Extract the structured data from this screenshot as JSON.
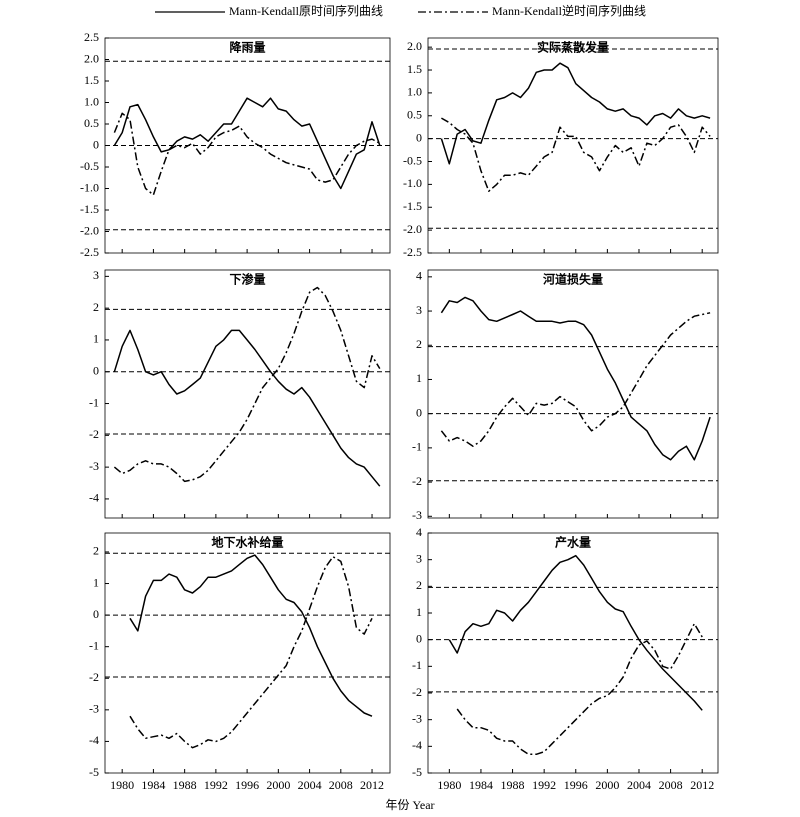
{
  "xlabel": "年份 Year",
  "chart_data": [
    {
      "type": "line",
      "title": "降雨量",
      "x": [
        1979,
        1980,
        1981,
        1982,
        1983,
        1984,
        1985,
        1986,
        1987,
        1988,
        1989,
        1990,
        1991,
        1992,
        1993,
        1994,
        1995,
        1996,
        1997,
        1998,
        1999,
        2000,
        2001,
        2002,
        2003,
        2004,
        2005,
        2006,
        2007,
        2008,
        2009,
        2010,
        2011,
        2012,
        2013
      ],
      "xlim": [
        1977.8,
        2014.3
      ],
      "xticks": [
        1980,
        1984,
        1988,
        1992,
        1996,
        2000,
        2004,
        2008,
        2012
      ],
      "ylim": [
        -2.5,
        2.5
      ],
      "yticks": [
        2.5,
        {
          "value": 2,
          "label": "2.0"
        },
        1.5,
        {
          "value": 1,
          "label": "1.0"
        },
        0.5,
        0,
        -0.5,
        {
          "value": -1,
          "label": "-1.0"
        },
        -1.5,
        {
          "value": -2,
          "label": "-2.0"
        },
        -2.5
      ],
      "reference_lines": [
        1.96,
        0,
        -1.96
      ],
      "series": [
        {
          "name": "Mann-Kendall原时间序列曲线",
          "color": "#000000",
          "style": "solid",
          "values": [
            0,
            0.3,
            0.9,
            0.95,
            0.6,
            0.2,
            -0.15,
            -0.1,
            0.1,
            0.2,
            0.15,
            0.25,
            0.1,
            0.3,
            0.5,
            0.5,
            0.8,
            1.1,
            1.0,
            0.9,
            1.1,
            0.85,
            0.8,
            0.6,
            0.45,
            0.5,
            0.1,
            -0.3,
            -0.7,
            -1.0,
            -0.6,
            -0.2,
            -0.1,
            0.55,
            0.0
          ]
        },
        {
          "name": "Mann-Kendall逆时间序列曲线",
          "color": "#000000",
          "style": "dashdot",
          "values": [
            0.3,
            0.75,
            0.6,
            -0.5,
            -1.0,
            -1.15,
            -0.6,
            -0.1,
            0,
            -0.05,
            0.05,
            -0.2,
            -0.05,
            0.2,
            0.3,
            0.35,
            0.45,
            0.2,
            0.05,
            -0.05,
            -0.2,
            -0.3,
            -0.4,
            -0.45,
            -0.5,
            -0.55,
            -0.8,
            -0.85,
            -0.8,
            -0.5,
            -0.2,
            0,
            0.1,
            0.15,
            0.05
          ]
        }
      ]
    },
    {
      "type": "line",
      "title": "实际蒸散发量",
      "x": [
        1979,
        1980,
        1981,
        1982,
        1983,
        1984,
        1985,
        1986,
        1987,
        1988,
        1989,
        1990,
        1991,
        1992,
        1993,
        1994,
        1995,
        1996,
        1997,
        1998,
        1999,
        2000,
        2001,
        2002,
        2003,
        2004,
        2005,
        2006,
        2007,
        2008,
        2009,
        2010,
        2011,
        2012,
        2013
      ],
      "xlim": [
        1977.3,
        2014
      ],
      "xticks": [
        1980,
        1984,
        1988,
        1992,
        1996,
        2000,
        2004,
        2008,
        2012
      ],
      "ylim": [
        -2.5,
        2.2
      ],
      "yticks": [
        {
          "value": 2,
          "label": "2.0"
        },
        1.5,
        {
          "value": 1,
          "label": "1.0"
        },
        0.5,
        0,
        -0.5,
        {
          "value": -1,
          "label": "-1.0"
        },
        -1.5,
        {
          "value": -2,
          "label": "-2.0"
        },
        -2.5
      ],
      "reference_lines": [
        1.96,
        0,
        -1.96
      ],
      "series": [
        {
          "name": "Mann-Kendall原时间序列曲线",
          "color": "#000000",
          "style": "solid",
          "values": [
            0,
            -0.55,
            0.1,
            0.2,
            -0.05,
            -0.1,
            0.4,
            0.85,
            0.9,
            1.0,
            0.9,
            1.1,
            1.45,
            1.5,
            1.5,
            1.65,
            1.55,
            1.2,
            1.05,
            0.9,
            0.8,
            0.65,
            0.6,
            0.65,
            0.5,
            0.45,
            0.3,
            0.5,
            0.55,
            0.45,
            0.65,
            0.5,
            0.45,
            0.5,
            0.45
          ]
        },
        {
          "name": "Mann-Kendall逆时间序列曲线",
          "color": "#000000",
          "style": "dashdot",
          "values": [
            0.45,
            0.35,
            0.2,
            0.1,
            -0.1,
            -0.7,
            -1.15,
            -1.0,
            -0.8,
            -0.8,
            -0.75,
            -0.8,
            -0.6,
            -0.4,
            -0.3,
            0.25,
            0.05,
            0.05,
            -0.3,
            -0.4,
            -0.7,
            -0.4,
            -0.15,
            -0.3,
            -0.2,
            -0.6,
            -0.1,
            -0.15,
            0.0,
            0.25,
            0.3,
            0.05,
            -0.3,
            0.25,
            0.05
          ]
        }
      ]
    },
    {
      "type": "line",
      "title": "下渗量",
      "x": [
        1979,
        1980,
        1981,
        1982,
        1983,
        1984,
        1985,
        1986,
        1987,
        1988,
        1989,
        1990,
        1991,
        1992,
        1993,
        1994,
        1995,
        1996,
        1997,
        1998,
        1999,
        2000,
        2001,
        2002,
        2003,
        2004,
        2005,
        2006,
        2007,
        2008,
        2009,
        2010,
        2011,
        2012,
        2013
      ],
      "xlim": [
        1977.8,
        2014.3
      ],
      "xticks": [
        1980,
        1984,
        1988,
        1992,
        1996,
        2000,
        2004,
        2008,
        2012
      ],
      "ylim": [
        -4.6,
        3.2
      ],
      "yticks": [
        3,
        2,
        1,
        0,
        -1,
        -2,
        -3,
        -4
      ],
      "reference_lines": [
        1.96,
        0,
        -1.96
      ],
      "series": [
        {
          "name": "Mann-Kendall原时间序列曲线",
          "color": "#000000",
          "style": "solid",
          "values": [
            0,
            0.8,
            1.3,
            0.7,
            0,
            -0.1,
            0,
            -0.4,
            -0.7,
            -0.6,
            -0.4,
            -0.2,
            0.3,
            0.8,
            1.0,
            1.3,
            1.3,
            1.0,
            0.7,
            0.35,
            0,
            -0.3,
            -0.55,
            -0.7,
            -0.5,
            -0.8,
            -1.2,
            -1.6,
            -2.0,
            -2.4,
            -2.7,
            -2.9,
            -3.0,
            -3.3,
            -3.6
          ]
        },
        {
          "name": "Mann-Kendall逆时间序列曲线",
          "color": "#000000",
          "style": "dashdot",
          "values": [
            -3.0,
            -3.2,
            -3.1,
            -2.9,
            -2.8,
            -2.9,
            -2.9,
            -3.0,
            -3.2,
            -3.45,
            -3.4,
            -3.3,
            -3.1,
            -2.8,
            -2.5,
            -2.2,
            -1.9,
            -1.5,
            -1.0,
            -0.5,
            -0.2,
            0.1,
            0.6,
            1.2,
            1.9,
            2.5,
            2.65,
            2.4,
            1.9,
            1.3,
            0.5,
            -0.3,
            -0.5,
            0.5,
            0.1
          ]
        }
      ]
    },
    {
      "type": "line",
      "title": "河道损失量",
      "x": [
        1979,
        1980,
        1981,
        1982,
        1983,
        1984,
        1985,
        1986,
        1987,
        1988,
        1989,
        1990,
        1991,
        1992,
        1993,
        1994,
        1995,
        1996,
        1997,
        1998,
        1999,
        2000,
        2001,
        2002,
        2003,
        2004,
        2005,
        2006,
        2007,
        2008,
        2009,
        2010,
        2011,
        2012,
        2013
      ],
      "xlim": [
        1977.3,
        2014
      ],
      "xticks": [
        1980,
        1984,
        1988,
        1992,
        1996,
        2000,
        2004,
        2008,
        2012
      ],
      "ylim": [
        -3.05,
        4.2
      ],
      "yticks": [
        4,
        3,
        2,
        1,
        0,
        -1,
        -2,
        -3
      ],
      "reference_lines": [
        1.96,
        0,
        -1.96
      ],
      "series": [
        {
          "name": "Mann-Kendall原时间序列曲线",
          "color": "#000000",
          "style": "solid",
          "values": [
            2.95,
            3.3,
            3.25,
            3.4,
            3.3,
            3.0,
            2.75,
            2.7,
            2.8,
            2.9,
            3.0,
            2.85,
            2.7,
            2.7,
            2.7,
            2.65,
            2.7,
            2.7,
            2.6,
            2.3,
            1.8,
            1.3,
            0.9,
            0.4,
            -0.1,
            -0.3,
            -0.5,
            -0.9,
            -1.2,
            -1.35,
            -1.1,
            -0.95,
            -1.35,
            -0.8,
            -0.1
          ]
        },
        {
          "name": "Mann-Kendall逆时间序列曲线",
          "color": "#000000",
          "style": "dashdot",
          "values": [
            -0.5,
            -0.8,
            -0.7,
            -0.8,
            -0.95,
            -0.8,
            -0.5,
            -0.1,
            0.2,
            0.45,
            0.2,
            -0.05,
            0.3,
            0.25,
            0.3,
            0.5,
            0.35,
            0.2,
            -0.2,
            -0.5,
            -0.35,
            -0.1,
            0.0,
            0.2,
            0.6,
            1.0,
            1.4,
            1.7,
            2.0,
            2.3,
            2.5,
            2.7,
            2.85,
            2.9,
            2.95
          ]
        }
      ]
    },
    {
      "type": "line",
      "title": "地下水补给量",
      "x": [
        1979,
        1980,
        1981,
        1982,
        1983,
        1984,
        1985,
        1986,
        1987,
        1988,
        1989,
        1990,
        1991,
        1992,
        1993,
        1994,
        1995,
        1996,
        1997,
        1998,
        1999,
        2000,
        2001,
        2002,
        2003,
        2004,
        2005,
        2006,
        2007,
        2008,
        2009,
        2010,
        2011,
        2012,
        2013
      ],
      "xlim": [
        1977.8,
        2014.3
      ],
      "xticks": [
        1980,
        1984,
        1988,
        1992,
        1996,
        2000,
        2004,
        2008,
        2012
      ],
      "ylim": [
        -5,
        2.6
      ],
      "yticks": [
        2,
        1,
        0,
        -1,
        -2,
        -3,
        -4,
        -5
      ],
      "reference_lines": [
        1.96,
        0,
        -1.96
      ],
      "series": [
        {
          "name": "Mann-Kendall原时间序列曲线",
          "color": "#000000",
          "style": "solid",
          "values": [
            null,
            null,
            -0.1,
            -0.5,
            0.6,
            1.1,
            1.1,
            1.3,
            1.2,
            0.8,
            0.7,
            0.9,
            1.2,
            1.2,
            1.3,
            1.4,
            1.6,
            1.8,
            1.9,
            1.6,
            1.2,
            0.8,
            0.5,
            0.4,
            0.1,
            -0.4,
            -1.0,
            -1.5,
            -2.0,
            -2.4,
            -2.7,
            -2.9,
            -3.1,
            -3.2,
            null
          ]
        },
        {
          "name": "Mann-Kendall逆时间序列曲线",
          "color": "#000000",
          "style": "dashdot",
          "values": [
            null,
            null,
            -3.2,
            -3.6,
            -3.9,
            -3.85,
            -3.8,
            -3.9,
            -3.75,
            -4.0,
            -4.2,
            -4.1,
            -3.95,
            -4.0,
            -3.9,
            -3.7,
            -3.4,
            -3.1,
            -2.8,
            -2.5,
            -2.2,
            -1.9,
            -1.6,
            -1.0,
            -0.5,
            0.2,
            0.9,
            1.5,
            1.85,
            1.7,
            0.9,
            -0.4,
            -0.6,
            -0.1,
            null
          ]
        }
      ]
    },
    {
      "type": "line",
      "title": "产水量",
      "x": [
        1979,
        1980,
        1981,
        1982,
        1983,
        1984,
        1985,
        1986,
        1987,
        1988,
        1989,
        1990,
        1991,
        1992,
        1993,
        1994,
        1995,
        1996,
        1997,
        1998,
        1999,
        2000,
        2001,
        2002,
        2003,
        2004,
        2005,
        2006,
        2007,
        2008,
        2009,
        2010,
        2011,
        2012,
        2013
      ],
      "xlim": [
        1977.3,
        2014
      ],
      "xticks": [
        1980,
        1984,
        1988,
        1992,
        1996,
        2000,
        2004,
        2008,
        2012
      ],
      "ylim": [
        -5,
        4
      ],
      "yticks": [
        4,
        3,
        2,
        1,
        0,
        -1,
        -2,
        -3,
        -4,
        -5
      ],
      "reference_lines": [
        1.96,
        0,
        -1.96
      ],
      "series": [
        {
          "name": "Mann-Kendall原时间序列曲线",
          "color": "#000000",
          "style": "solid",
          "values": [
            null,
            0,
            -0.5,
            0.3,
            0.6,
            0.5,
            0.6,
            1.1,
            1.0,
            0.7,
            1.1,
            1.4,
            1.8,
            2.2,
            2.6,
            2.9,
            3.0,
            3.15,
            2.8,
            2.3,
            1.8,
            1.4,
            1.15,
            1.05,
            0.5,
            0.0,
            -0.4,
            -0.75,
            -1.1,
            -1.4,
            -1.7,
            -2.0,
            -2.3,
            -2.65,
            null
          ]
        },
        {
          "name": "Mann-Kendall逆时间序列曲线",
          "color": "#000000",
          "style": "dashdot",
          "values": [
            null,
            null,
            -2.6,
            -3.0,
            -3.3,
            -3.3,
            -3.4,
            -3.7,
            -3.8,
            -3.8,
            -4.1,
            -4.3,
            -4.3,
            -4.2,
            -3.9,
            -3.6,
            -3.3,
            -3.0,
            -2.7,
            -2.4,
            -2.2,
            -2.1,
            -1.8,
            -1.4,
            -0.7,
            -0.2,
            -0.05,
            -0.4,
            -1.0,
            -1.1,
            -0.6,
            0.0,
            0.6,
            0.1,
            null
          ]
        }
      ]
    }
  ]
}
